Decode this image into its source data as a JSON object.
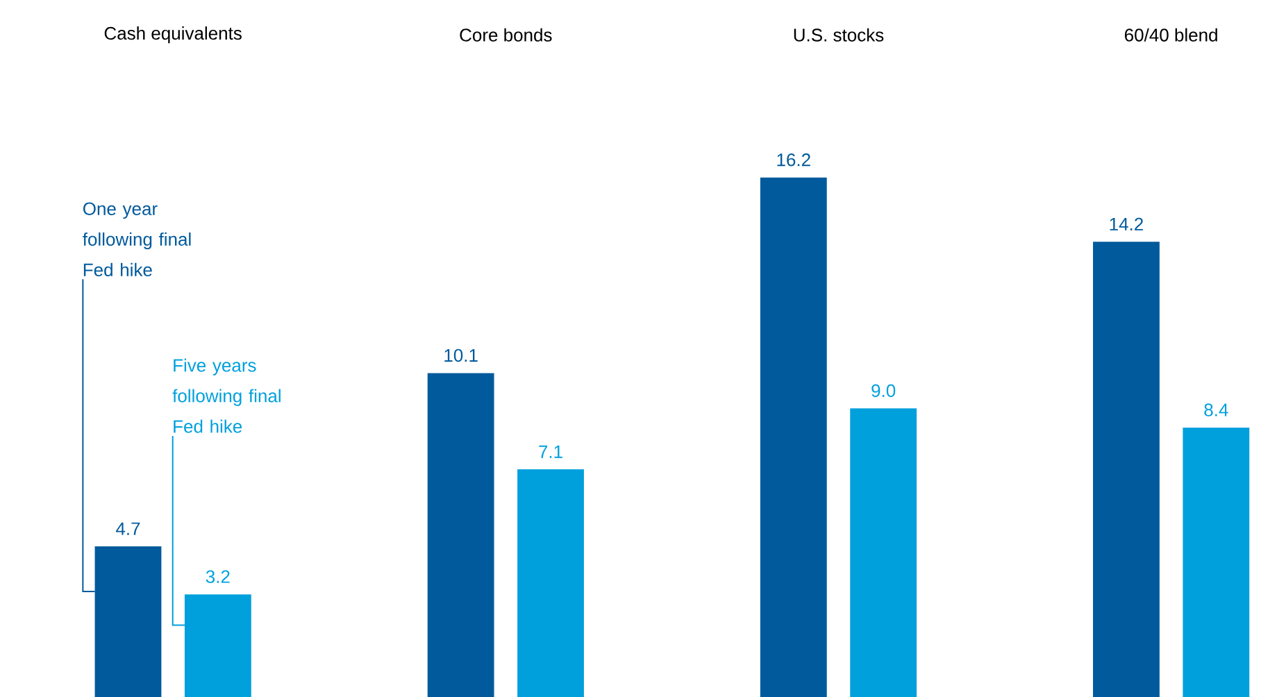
{
  "chart_data": {
    "type": "bar",
    "categories": [
      "Cash equivalents",
      "Core bonds",
      "U.S. stocks",
      "60/40 blend"
    ],
    "series": [
      {
        "name": "One year following final Fed hike",
        "color": "#005a9c",
        "values": [
          4.7,
          10.1,
          16.2,
          14.2
        ],
        "value_labels": [
          "4.7",
          "10.1",
          "16.2",
          "14.2"
        ]
      },
      {
        "name": "Five years following final Fed hike",
        "color": "#00a0dc",
        "values": [
          3.2,
          7.1,
          9.0,
          8.4
        ],
        "value_labels": [
          "3.2",
          "7.1",
          "9.0",
          "8.4"
        ]
      }
    ]
  }
}
